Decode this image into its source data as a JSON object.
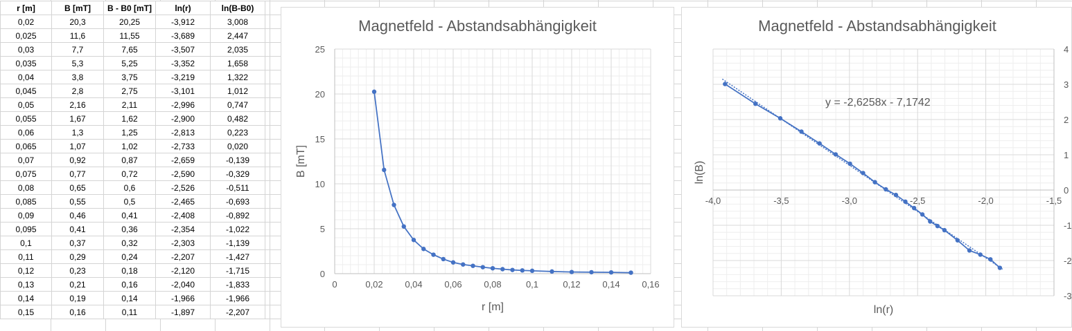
{
  "table": {
    "headers": [
      "r [m]",
      "B [mT]",
      "B - B0 [mT]",
      "ln(r)",
      "ln(B-B0)"
    ],
    "rows": [
      [
        "0,02",
        "20,3",
        "20,25",
        "-3,912",
        "3,008"
      ],
      [
        "0,025",
        "11,6",
        "11,55",
        "-3,689",
        "2,447"
      ],
      [
        "0,03",
        "7,7",
        "7,65",
        "-3,507",
        "2,035"
      ],
      [
        "0,035",
        "5,3",
        "5,25",
        "-3,352",
        "1,658"
      ],
      [
        "0,04",
        "3,8",
        "3,75",
        "-3,219",
        "1,322"
      ],
      [
        "0,045",
        "2,8",
        "2,75",
        "-3,101",
        "1,012"
      ],
      [
        "0,05",
        "2,16",
        "2,11",
        "-2,996",
        "0,747"
      ],
      [
        "0,055",
        "1,67",
        "1,62",
        "-2,900",
        "0,482"
      ],
      [
        "0,06",
        "1,3",
        "1,25",
        "-2,813",
        "0,223"
      ],
      [
        "0,065",
        "1,07",
        "1,02",
        "-2,733",
        "0,020"
      ],
      [
        "0,07",
        "0,92",
        "0,87",
        "-2,659",
        "-0,139"
      ],
      [
        "0,075",
        "0,77",
        "0,72",
        "-2,590",
        "-0,329"
      ],
      [
        "0,08",
        "0,65",
        "0,6",
        "-2,526",
        "-0,511"
      ],
      [
        "0,085",
        "0,55",
        "0,5",
        "-2,465",
        "-0,693"
      ],
      [
        "0,09",
        "0,46",
        "0,41",
        "-2,408",
        "-0,892"
      ],
      [
        "0,095",
        "0,41",
        "0,36",
        "-2,354",
        "-1,022"
      ],
      [
        "0,1",
        "0,37",
        "0,32",
        "-2,303",
        "-1,139"
      ],
      [
        "0,11",
        "0,29",
        "0,24",
        "-2,207",
        "-1,427"
      ],
      [
        "0,12",
        "0,23",
        "0,18",
        "-2,120",
        "-1,715"
      ],
      [
        "0,13",
        "0,21",
        "0,16",
        "-2,040",
        "-1,833"
      ],
      [
        "0,14",
        "0,19",
        "0,14",
        "-1,966",
        "-1,966"
      ],
      [
        "0,15",
        "0,16",
        "0,11",
        "-1,897",
        "-2,207"
      ]
    ]
  },
  "chart_data": [
    {
      "type": "line",
      "title": "Magnetfeld - Abstandsabhängigkeit",
      "xlabel": "r [m]",
      "ylabel": "B [mT]",
      "xlim": [
        0,
        0.16
      ],
      "ylim": [
        0,
        25
      ],
      "xticks": [
        0,
        0.02,
        0.04,
        0.06,
        0.08,
        0.1,
        0.12,
        0.14,
        0.16
      ],
      "xtick_labels": [
        "0",
        "0,02",
        "0,04",
        "0,06",
        "0,08",
        "0,1",
        "0,12",
        "0,14",
        "0,16"
      ],
      "yticks": [
        0,
        5,
        10,
        15,
        20,
        25
      ],
      "ytick_labels": [
        "0",
        "5",
        "10",
        "15",
        "20",
        "25"
      ],
      "grid": true,
      "color": "#4472c4",
      "x": [
        0.02,
        0.025,
        0.03,
        0.035,
        0.04,
        0.045,
        0.05,
        0.055,
        0.06,
        0.065,
        0.07,
        0.075,
        0.08,
        0.085,
        0.09,
        0.095,
        0.1,
        0.11,
        0.12,
        0.13,
        0.14,
        0.15
      ],
      "y": [
        20.25,
        11.55,
        7.65,
        5.25,
        3.75,
        2.75,
        2.11,
        1.62,
        1.25,
        1.02,
        0.87,
        0.72,
        0.6,
        0.5,
        0.41,
        0.36,
        0.32,
        0.24,
        0.18,
        0.16,
        0.14,
        0.11
      ]
    },
    {
      "type": "line",
      "title": "Magnetfeld - Abstandsabhängigkeit",
      "xlabel": "ln(r)",
      "ylabel": "ln(B)",
      "xlim": [
        -4.0,
        -1.5
      ],
      "ylim": [
        -3,
        4
      ],
      "xticks": [
        -4.0,
        -3.5,
        -3.0,
        -2.5,
        -2.0,
        -1.5
      ],
      "xtick_labels": [
        "-4,0",
        "-3,5",
        "-3,0",
        "-2,5",
        "-2,0",
        "-1,5"
      ],
      "yticks": [
        -3,
        -2,
        -1,
        0,
        1,
        2,
        3,
        4
      ],
      "ytick_labels": [
        "-3",
        "-2",
        "-1",
        "0",
        "1",
        "2",
        "3",
        "4"
      ],
      "grid": true,
      "color": "#4472c4",
      "trendline_label": "y = -2,6258x - 7,1742",
      "trendline": {
        "slope": -2.6258,
        "intercept": -7.1742
      },
      "x": [
        -3.912,
        -3.689,
        -3.507,
        -3.352,
        -3.219,
        -3.101,
        -2.996,
        -2.9,
        -2.813,
        -2.733,
        -2.659,
        -2.59,
        -2.526,
        -2.465,
        -2.408,
        -2.354,
        -2.303,
        -2.207,
        -2.12,
        -2.04,
        -1.966,
        -1.897
      ],
      "y": [
        3.008,
        2.447,
        2.035,
        1.658,
        1.322,
        1.012,
        0.747,
        0.482,
        0.223,
        0.02,
        -0.139,
        -0.329,
        -0.511,
        -0.693,
        -0.892,
        -1.022,
        -1.139,
        -1.427,
        -1.715,
        -1.833,
        -1.966,
        -2.207
      ]
    }
  ]
}
